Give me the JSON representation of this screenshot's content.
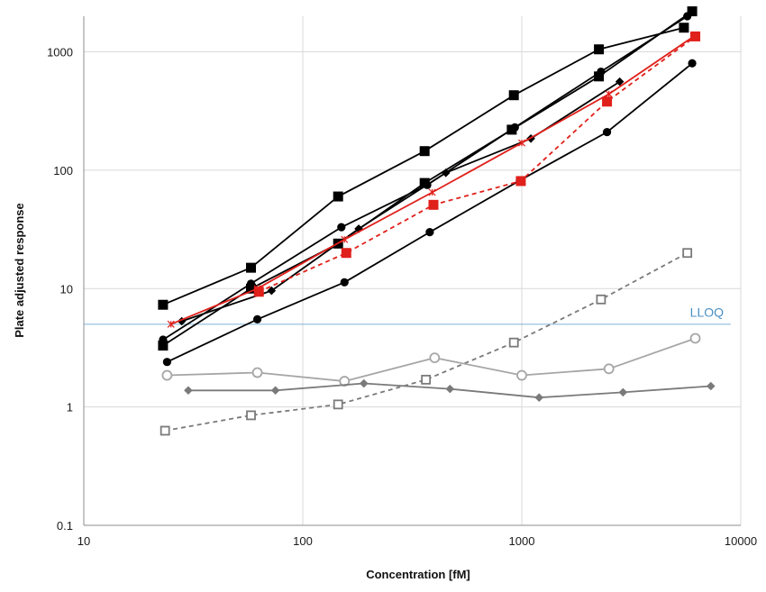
{
  "chart_data": {
    "type": "line",
    "title": "",
    "xlabel": "Concentration [fM]",
    "ylabel": "Plate adjusted response",
    "xscale": "log",
    "yscale": "log",
    "xlim": [
      10,
      10000
    ],
    "ylim": [
      0.1,
      2000
    ],
    "x_ticks": [
      10,
      100,
      1000,
      10000
    ],
    "x_tick_labels": [
      "10",
      "100",
      "1000",
      "10000"
    ],
    "y_ticks": [
      0.1,
      1,
      10,
      100,
      1000
    ],
    "y_tick_labels": [
      "0.1",
      "1",
      "10",
      "100",
      "1000"
    ],
    "grid": true,
    "legend": "none",
    "annotations": [
      {
        "text": "LLOQ",
        "x": 7000,
        "y": 5.8,
        "color": "#4a90c4"
      }
    ],
    "reference_lines": [
      {
        "label": "LLOQ",
        "y": 5.0,
        "x_range": [
          10,
          9000
        ],
        "color": "#7fb1d6"
      }
    ],
    "series": [
      {
        "marker": "square",
        "filled": true,
        "color": "#000000",
        "dash": "solid",
        "x": [
          23,
          58,
          145,
          360,
          920,
          2250,
          5500
        ],
        "y": [
          7.3,
          15,
          60,
          145,
          430,
          1050,
          1600
        ]
      },
      {
        "marker": "circle",
        "filled": true,
        "color": "#000000",
        "dash": "solid",
        "x": [
          23,
          58,
          150,
          370,
          930,
          2300,
          5700
        ],
        "y": [
          3.7,
          11,
          33,
          75,
          230,
          680,
          2000
        ]
      },
      {
        "marker": "circle",
        "filled": true,
        "color": "#000000",
        "dash": "solid",
        "x": [
          24,
          62,
          155,
          380,
          980,
          2450,
          6000
        ],
        "y": [
          2.4,
          5.5,
          11.3,
          30,
          82,
          210,
          800
        ]
      },
      {
        "marker": "diamond",
        "filled": true,
        "color": "#000000",
        "dash": "solid",
        "x": [
          28,
          72,
          180,
          450,
          1100,
          2800
        ],
        "y": [
          5.3,
          9.6,
          32,
          95,
          185,
          560
        ]
      },
      {
        "marker": "square",
        "filled": true,
        "color": "#000000",
        "dash": "solid",
        "x": [
          23,
          58,
          145,
          360,
          900,
          2250,
          6000
        ],
        "y": [
          3.3,
          10,
          24,
          78,
          220,
          620,
          2200
        ]
      },
      {
        "marker": "asterisk",
        "filled": true,
        "color": "#e0201b",
        "dash": "solid",
        "x": [
          25,
          62,
          155,
          390,
          1000,
          2500,
          6100
        ],
        "y": [
          5.0,
          10,
          26,
          65,
          170,
          440,
          1350
        ]
      },
      {
        "marker": "square",
        "filled": true,
        "color": "#e0201b",
        "dash": "dashed",
        "x": [
          63,
          158,
          395,
          990,
          2450,
          6200
        ],
        "y": [
          9.4,
          20,
          51,
          81,
          380,
          1350
        ]
      },
      {
        "marker": "square",
        "filled": false,
        "color": "#7a7a7a",
        "dash": "dashed",
        "x": [
          23.5,
          58,
          145,
          365,
          920,
          2300,
          5700
        ],
        "y": [
          0.63,
          0.85,
          1.05,
          1.7,
          3.5,
          8.1,
          20
        ]
      },
      {
        "marker": "circle",
        "filled": false,
        "color": "#a6a6a6",
        "dash": "solid",
        "x": [
          24,
          62,
          155,
          400,
          1000,
          2500,
          6200
        ],
        "y": [
          1.85,
          1.95,
          1.65,
          2.6,
          1.85,
          2.1,
          3.8
        ]
      },
      {
        "marker": "diamond",
        "filled": true,
        "color": "#7a7a7a",
        "dash": "solid",
        "x": [
          30,
          75,
          190,
          470,
          1200,
          2900,
          7300
        ],
        "y": [
          1.38,
          1.38,
          1.58,
          1.42,
          1.2,
          1.33,
          1.5
        ]
      }
    ]
  }
}
